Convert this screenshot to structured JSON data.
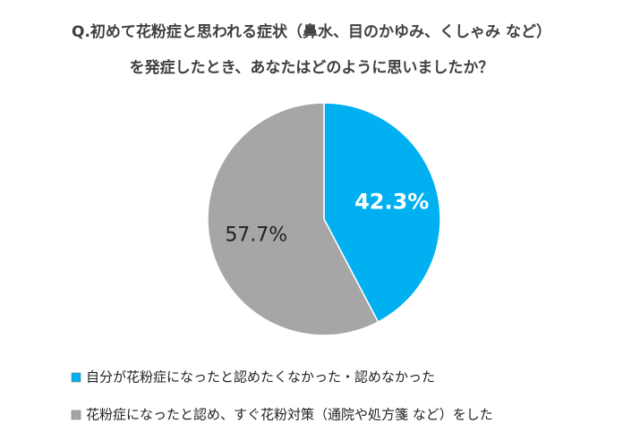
{
  "chart_data": {
    "type": "pie",
    "title": [
      "Q.初めて花粉症と思われる症状（鼻水、目のかゆみ、くしゃみ など）",
      "を発症したとき、あなたはどのように思いましたか？"
    ],
    "categories": [
      "自分が花粉症になったと認めたくなかった・認めなかった",
      "花粉症になったと認め、すぐ花粉対策（通院や処方箋 など）をした"
    ],
    "values": [
      42.3,
      57.7
    ],
    "value_labels": [
      "42.3%",
      "57.7%"
    ],
    "colors": [
      "#00b0f0",
      "#a6a6a6"
    ]
  }
}
